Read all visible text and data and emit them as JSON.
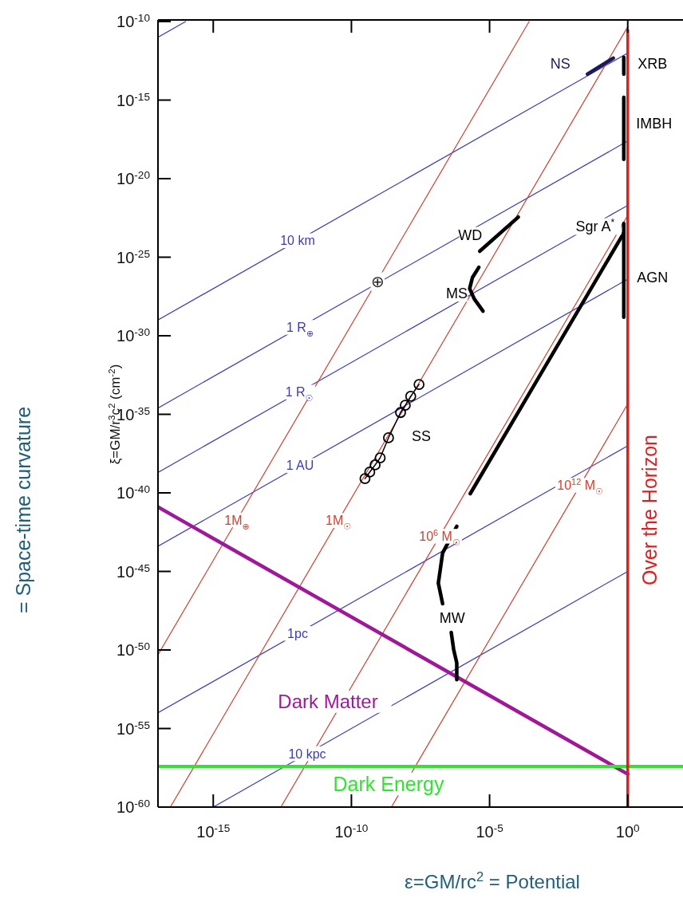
{
  "chart_data": {
    "type": "line",
    "log": "xy",
    "xlabel": "ε=GM/rc$^{2}$ = Potential",
    "ylabel": "ξ=GM/r$^{3}$c$^{2}$ (cm$^{-2}$)",
    "xlim": [
      1e-17,
      100
    ],
    "ylim": [
      1e-60,
      1e-10
    ],
    "xticks": [
      {
        "value": 1e-15,
        "label": "10$^{-15}$"
      },
      {
        "value": 1e-10,
        "label": "10$^{-10}$"
      },
      {
        "value": 1e-05,
        "label": "10$^{-5}$"
      },
      {
        "value": 1,
        "label": "10$^{0}$"
      }
    ],
    "yticks": [
      {
        "value": 1e-10,
        "label": "10$^{-10}$"
      },
      {
        "value": 1e-15,
        "label": "10$^{-15}$"
      },
      {
        "value": 1e-20,
        "label": "10$^{-20}$"
      },
      {
        "value": 1e-25,
        "label": "10$^{-25}$"
      },
      {
        "value": 1e-30,
        "label": "10$^{-30}$"
      },
      {
        "value": 1e-35,
        "label": "10$^{-35}$"
      },
      {
        "value": 1e-40,
        "label": "10$^{-40}$"
      },
      {
        "value": 1e-45,
        "label": "10$^{-45}$"
      },
      {
        "value": 1e-50,
        "label": "10$^{-50}$"
      },
      {
        "value": 1e-55,
        "label": "10$^{-55}$"
      },
      {
        "value": 1e-60,
        "label": "10$^{-60}$"
      }
    ],
    "series": [
      {
        "color": "#3a3ab8",
        "x": [
          1e-17,
          1e-16
        ],
        "values": [
          1e-11,
          1e-10
        ]
      },
      {
        "name": "10 km",
        "color": "#3a3ab8",
        "x": [
          1e-17,
          1
        ],
        "values": [
          1e-29,
          1e-12
        ]
      },
      {
        "name": "1 R$_{⊕}$",
        "color": "#3a3ab8",
        "x": [
          1e-17,
          1
        ],
        "values": [
          2.5e-35,
          2.5e-18
        ]
      },
      {
        "name": "1 R$_{☉}$",
        "color": "#3a3ab8",
        "x": [
          1e-17,
          1
        ],
        "values": [
          2e-39,
          2e-22
        ]
      },
      {
        "name": "1 AU",
        "color": "#3a3ab8",
        "x": [
          1e-17,
          1
        ],
        "values": [
          4e-44,
          4e-27
        ]
      },
      {
        "name": "1pc",
        "color": "#3a3ab8",
        "x": [
          1e-17,
          1
        ],
        "values": [
          1e-54,
          1e-37
        ]
      },
      {
        "name": "10 kpc",
        "color": "#3a3ab8",
        "x": [
          1e-15,
          1
        ],
        "values": [
          1e-60,
          1e-45
        ]
      },
      {
        "name": "1M$_{⊕}$",
        "color": "#d04030",
        "x": [
          1e-17,
          0.00027
        ],
        "values": [
          5e-51,
          1e-10
        ]
      },
      {
        "name": "1M$_{☉}$",
        "color": "#d04030",
        "x": [
          2.8e-17,
          1
        ],
        "values": [
          1e-60,
          4.6e-11
        ]
      },
      {
        "name": "10$^{6}$ M$_{☉}$",
        "color": "#d04030",
        "x": [
          2.8e-13,
          1
        ],
        "values": [
          1e-60,
          4.6e-23
        ]
      },
      {
        "name": "10$^{12}$ M$_{☉}$",
        "color": "#d04030",
        "x": [
          2.8e-09,
          1
        ],
        "values": [
          1e-60,
          4.6e-35
        ]
      },
      {
        "name": "Dark Matter",
        "color": "#a0189a",
        "x": [
          1e-17,
          1
        ],
        "values": [
          1.26e-41,
          1.26e-58
        ]
      },
      {
        "name": "SS",
        "color": "#000000",
        "marker": "circle",
        "x": [
          3.1e-10,
          4.6e-10,
          7.2e-10,
          1.1e-09,
          2.2e-09,
          6e-09,
          8.9e-09,
          1.4e-08,
          2.8e-08
        ],
        "values": [
          8.1e-40,
          2.1e-39,
          6e-39,
          1.7e-38,
          3.2e-37,
          1.3e-35,
          3.8e-35,
          1.4e-34,
          7.9e-34
        ]
      },
      {
        "name": "NS",
        "color": "#1a1a5a",
        "x": [
          0.035,
          0.3
        ],
        "values": [
          4.5e-14,
          4.7e-13
        ]
      },
      {
        "name": "XRB",
        "color": "#000000",
        "x": [
          0.72,
          0.72
        ],
        "values": [
          5.2e-13,
          4.5e-14
        ]
      },
      {
        "name": "IMBH",
        "color": "#000000",
        "x": [
          0.72,
          0.72
        ],
        "values": [
          1.5e-15,
          1.7e-19
        ]
      },
      {
        "name": "AGN",
        "color": "#000000",
        "x": [
          0.72,
          0.72
        ],
        "values": [
          1.4e-23,
          1.5e-29
        ]
      },
      {
        "name": "Sgr A$^{*}$",
        "color": "#000000",
        "x": [
          2e-06,
          0.72
        ],
        "values": [
          8.9e-41,
          3.5e-24
        ]
      },
      {
        "name": "WD",
        "color": "#000000",
        "x": [
          4.4e-06,
          0.00011
        ],
        "values": [
          2.4e-25,
          3.6e-23
        ]
      },
      {
        "name": "MS",
        "color": "#000000",
        "x": [
          4.1e-06,
          2.4e-06,
          1.9e-06,
          2.8e-06,
          5.8e-06
        ],
        "values": [
          2.3e-26,
          5.1e-27,
          1e-27,
          2.2e-28,
          3.7e-29
        ]
      },
      {
        "name": "MW",
        "color": "#000000",
        "x": [
          6.5e-07,
          2e-07,
          1.4e-07,
          2e-07,
          null,
          4.1e-07,
          5e-07,
          6.5e-07,
          6.5e-07
        ],
        "values": [
          7.4e-43,
          1.5e-44,
          1.8e-46,
          8.7e-48,
          null,
          1.3e-49,
          1.1e-50,
          1.5e-51,
          1.3e-52
        ]
      }
    ],
    "ref_lines": [
      {
        "axis": "y",
        "value": 3.9e-58,
        "label": "Dark Energy",
        "color": "#2ee62e"
      },
      {
        "axis": "x",
        "value": 1,
        "label": "Over the Horizon",
        "color": "#dd1f1f"
      }
    ],
    "annotations": [
      "= Space-time curvature",
      {
        "text": "⊕",
        "x": 8.9e-10,
        "y": 2.8e-27
      }
    ]
  }
}
